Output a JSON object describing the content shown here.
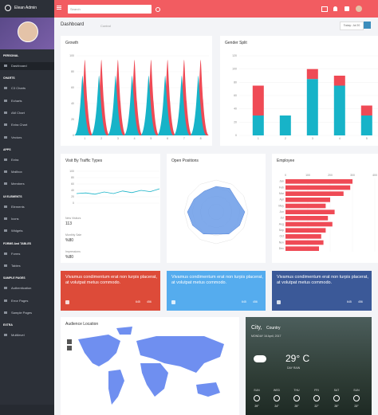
{
  "topbar": {
    "brand": "Elean Admin",
    "search": "Search"
  },
  "sidebar": {
    "sections": [
      {
        "title": "PERSONAL",
        "items": [
          "Dashboard"
        ]
      },
      {
        "title": "CHARTS",
        "items": [
          "C3 Charts",
          "Echarts",
          "AM Chart",
          "Extra Chart",
          "Vectors"
        ]
      },
      {
        "title": "APPS",
        "items": [
          "Extra",
          "Mailbox",
          "Members"
        ]
      },
      {
        "title": "UI ELEMENTS",
        "items": [
          "Elements",
          "Icons",
          "Widgets"
        ]
      },
      {
        "title": "FORMS And TABLES",
        "items": [
          "Forms",
          "Tables"
        ]
      },
      {
        "title": "SAMPLE PAGES",
        "items": [
          "Authentication",
          "Error Pages",
          "Sample Pages"
        ]
      },
      {
        "title": "EXTRA",
        "items": [
          "Multilevel"
        ]
      }
    ]
  },
  "header": {
    "title": "Dashboard",
    "breadcrumb": "Control",
    "date_button": "Today: Jul 20"
  },
  "cards": {
    "growth": "Growth",
    "gender": "Gender Split",
    "traffic": "Visit By Traffic Types",
    "positions": "Open Positions",
    "employee": "Employee",
    "audience": "Audience Location"
  },
  "traffic_stats": [
    {
      "label": "New Visitors",
      "value": "113"
    },
    {
      "label": "Monthly Sale",
      "value": "%80"
    },
    {
      "label": "Impressions",
      "value": "%80"
    }
  ],
  "social": [
    {
      "text": "Vivamus condimentum erat non turpis placerat, at volutpat metus commodo.",
      "likes": "645",
      "shares": "456"
    },
    {
      "text": "Vivamus condimentum erat non turpis placerat, at volutpat metus commodo.",
      "likes": "645",
      "shares": "456"
    },
    {
      "text": "Vivamus condimentum erat non turpis placerat, at volutpat metus commodo.",
      "likes": "645",
      "shares": "456"
    }
  ],
  "weather": {
    "city": "City,",
    "country": "Country",
    "date": "MONDAY 16 April, 2017",
    "temp": "29° C",
    "desc": "DAY RAIN",
    "days": [
      "SUN",
      "WED",
      "THU",
      "FRI",
      "SAT",
      "SUN"
    ],
    "temps": [
      "29°",
      "24°",
      "25°",
      "22°",
      "25°",
      "23°"
    ]
  },
  "chart_data": [
    {
      "type": "spike",
      "categories": [
        "1",
        "2",
        "3",
        "4",
        "5",
        "6",
        "7",
        "8"
      ],
      "ylim": [
        0,
        100
      ],
      "yticks": [
        0,
        20,
        40,
        60,
        80,
        100
      ],
      "series": [
        {
          "name": "A",
          "color": "#ef4a55",
          "values": [
            95,
            95,
            95,
            95,
            95,
            95,
            95,
            95
          ]
        },
        {
          "name": "B",
          "color": "#17b3c8",
          "values": [
            75,
            75,
            75,
            75,
            75,
            75,
            75,
            75
          ]
        }
      ]
    },
    {
      "type": "stacked",
      "categories": [
        "1",
        "2",
        "3",
        "4",
        "5"
      ],
      "ylim": [
        0,
        120
      ],
      "yticks": [
        0,
        20,
        40,
        60,
        80,
        100,
        120
      ],
      "series": [
        {
          "name": "A",
          "color": "#17b3c8",
          "values": [
            30,
            30,
            85,
            75,
            30
          ]
        },
        {
          "name": "B",
          "color": "#ef4a55",
          "values": [
            45,
            0,
            15,
            15,
            15
          ]
        }
      ]
    },
    {
      "type": "line",
      "ylim": [
        0,
        100
      ],
      "yticks": [
        0,
        20,
        40,
        60,
        80,
        100
      ],
      "series": [
        {
          "name": "A",
          "color": "#17b3c8",
          "values": [
            30,
            32,
            28,
            35,
            30,
            38,
            33,
            40,
            36,
            45
          ]
        }
      ]
    },
    {
      "type": "radar",
      "ylim": [
        0,
        100
      ],
      "values": [
        80,
        85,
        75,
        90,
        85,
        80,
        70,
        80,
        85,
        90,
        80,
        75
      ],
      "color": "#6a9be8"
    },
    {
      "type": "hbar",
      "categories": [
        "Jan",
        "Feb",
        "Mar",
        "Apr",
        "May",
        "Jun",
        "Jul",
        "Aug",
        "Sep",
        "Oct",
        "Nov",
        "Dec"
      ],
      "xlim": [
        0,
        400
      ],
      "xticks": [
        0,
        100,
        200,
        300,
        400
      ],
      "series": [
        {
          "name": "A",
          "color": "#ef4a55",
          "values": [
            300,
            290,
            260,
            200,
            180,
            220,
            190,
            210,
            180,
            160,
            170,
            150
          ]
        }
      ]
    }
  ]
}
